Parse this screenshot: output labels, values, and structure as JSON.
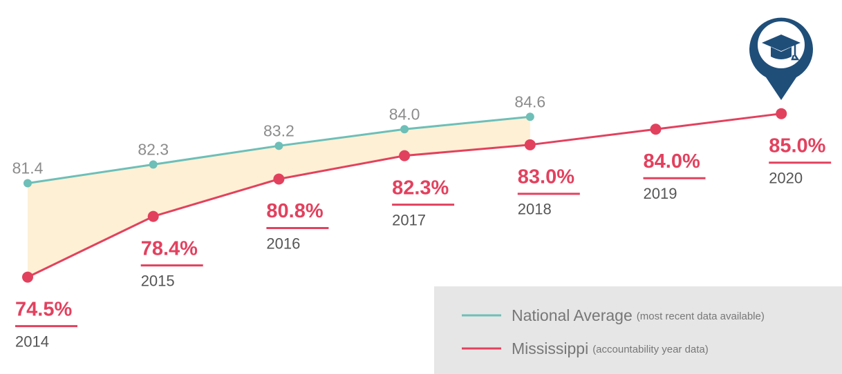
{
  "chart_data": {
    "type": "line",
    "categories": [
      "2014",
      "2015",
      "2016",
      "2017",
      "2018",
      "2019",
      "2020"
    ],
    "ylim": [
      72,
      88
    ],
    "y2lim": [
      75,
      87
    ],
    "legend": "bottom-right",
    "series": [
      {
        "name": "National Average",
        "note": "(most recent data available)",
        "color": "#6dbfb8",
        "axis": "y2",
        "values": [
          81.4,
          82.3,
          83.2,
          84.0,
          84.6,
          null,
          null
        ],
        "value_labels": [
          "81.4",
          "82.3",
          "83.2",
          "84.0",
          "84.6",
          null,
          null
        ]
      },
      {
        "name": "Mississippi",
        "note": "(accountability year data)",
        "color": "#e2415e",
        "values": [
          74.5,
          78.4,
          80.8,
          82.3,
          83.0,
          84.0,
          85.0
        ],
        "value_labels": [
          "74.5%",
          "78.4%",
          "80.8%",
          "82.3%",
          "83.0%",
          "84.0%",
          "85.0%"
        ]
      }
    ]
  }
}
